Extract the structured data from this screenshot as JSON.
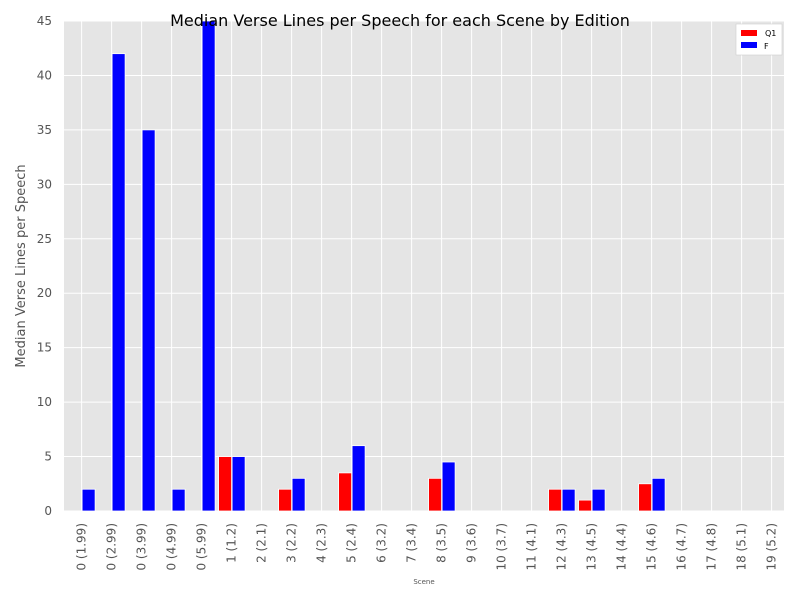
{
  "chart_data": {
    "type": "bar",
    "title": "Median Verse Lines per Speech for each Scene by Edition",
    "xlabel": "Scene",
    "ylabel": "Median Verse Lines per Speech",
    "ylim": [
      0,
      45
    ],
    "yticks": [
      0,
      5,
      10,
      15,
      20,
      25,
      30,
      35,
      40,
      45
    ],
    "grid": true,
    "legend_position": "top-right",
    "categories": [
      "0 (1.99)",
      "0 (2.99)",
      "0 (3.99)",
      "0 (4.99)",
      "0 (5.99)",
      "1 (1.2)",
      "2 (2.1)",
      "3 (2.2)",
      "4 (2.3)",
      "5 (2.4)",
      "6 (3.2)",
      "7 (3.4)",
      "8 (3.5)",
      "9 (3.6)",
      "10 (3.7)",
      "11 (4.1)",
      "12 (4.3)",
      "13 (4.5)",
      "14 (4.4)",
      "15 (4.6)",
      "16 (4.7)",
      "17 (4.8)",
      "18 (5.1)",
      "19 (5.2)"
    ],
    "series": [
      {
        "name": "Q1",
        "color": "#ff0000",
        "values": [
          0,
          0,
          0,
          0,
          0,
          5,
          0,
          2,
          0,
          3.5,
          0,
          0,
          3,
          0,
          0,
          0,
          2,
          1,
          0,
          2.5,
          0,
          0,
          0,
          0
        ]
      },
      {
        "name": "F",
        "color": "#0000ff",
        "values": [
          2,
          42,
          35,
          2,
          45,
          5,
          0,
          3,
          0,
          6,
          0,
          0,
          4.5,
          0,
          0,
          0,
          2,
          2,
          0,
          3,
          0,
          0,
          0,
          0
        ]
      }
    ]
  }
}
